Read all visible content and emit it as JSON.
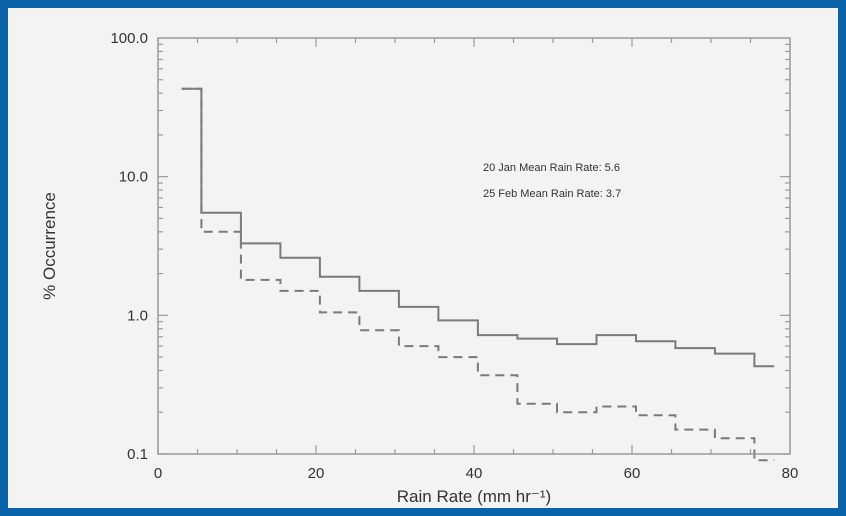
{
  "colors": {
    "border": "#0a63a8",
    "background": "#f3f3f3",
    "axis": "#9a9a9a",
    "series_solid": "#7a7a7a",
    "series_dashed": "#7a7a7a",
    "text": "#333333"
  },
  "chart_data": {
    "type": "line",
    "xlabel": "Rain Rate (mm hr⁻¹)",
    "ylabel": "% Occurrence",
    "xlim": [
      0,
      80
    ],
    "ylim": [
      0.1,
      100
    ],
    "yscale": "log",
    "grid": false,
    "x_ticks": [
      0,
      20,
      40,
      60,
      80
    ],
    "x_tick_labels": [
      "0",
      "20",
      "40",
      "60",
      "80"
    ],
    "y_ticks": [
      0.1,
      1,
      10,
      100
    ],
    "y_tick_labels": [
      "0.1",
      "1.0",
      "10.0",
      "100.0"
    ],
    "bin_edges": [
      3,
      5.5,
      10.5,
      15.5,
      20.5,
      25.5,
      30.5,
      35.5,
      40.5,
      45.5,
      50.5,
      55.5,
      60.5,
      65.5,
      70.5,
      75.5,
      78
    ],
    "legend_position": "right",
    "series": [
      {
        "name": "20 Jan Mean Rain Rate: 5.6",
        "style": "solid",
        "values": [
          43,
          5.5,
          3.3,
          2.6,
          1.9,
          1.5,
          1.15,
          0.92,
          0.72,
          0.68,
          0.62,
          0.72,
          0.65,
          0.58,
          0.53,
          0.43
        ]
      },
      {
        "name": "25 Feb Mean Rain Rate: 3.7",
        "style": "dashed",
        "values": [
          43,
          4.0,
          1.8,
          1.5,
          1.05,
          0.78,
          0.6,
          0.5,
          0.37,
          0.23,
          0.2,
          0.22,
          0.19,
          0.15,
          0.13,
          0.09
        ]
      }
    ]
  }
}
